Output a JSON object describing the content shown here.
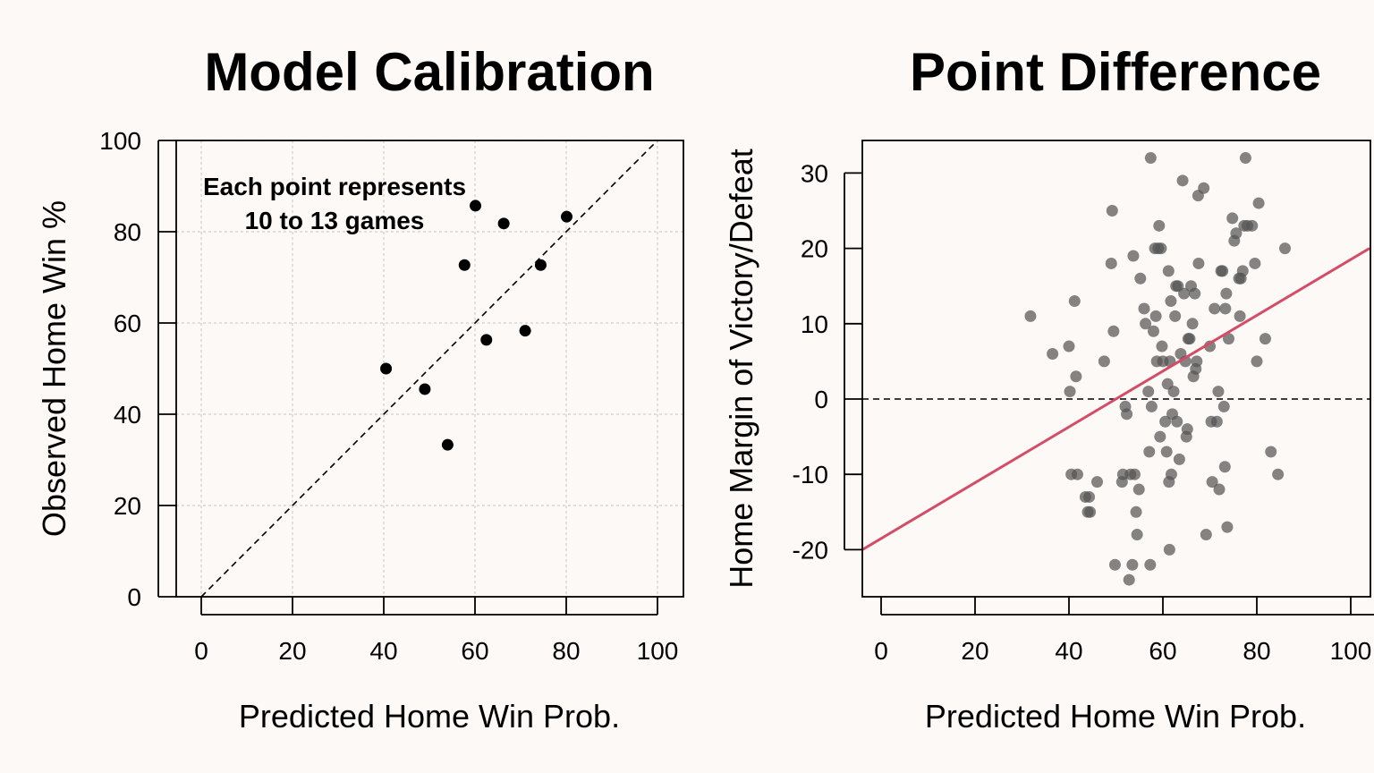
{
  "chart_data": [
    {
      "type": "scatter",
      "title": "Model Calibration",
      "xlabel": "Predicted Home Win Prob.",
      "ylabel": "Observed Home Win %",
      "xlim": [
        0,
        100
      ],
      "ylim": [
        0,
        100
      ],
      "xticks": [
        "0",
        "20",
        "40",
        "60",
        "80",
        "100"
      ],
      "yticks": [
        "0",
        "20",
        "40",
        "60",
        "80",
        "100"
      ],
      "grid": true,
      "reference_line": {
        "style": "dashed",
        "from": [
          0,
          0
        ],
        "to": [
          100,
          100
        ]
      },
      "annotation": [
        "Each point represents",
        "10 to 13 games"
      ],
      "point_color": "#000000",
      "points": [
        {
          "x": 40.5,
          "y": 50.0
        },
        {
          "x": 49.0,
          "y": 45.5
        },
        {
          "x": 54.0,
          "y": 33.3
        },
        {
          "x": 57.7,
          "y": 72.7
        },
        {
          "x": 60.1,
          "y": 85.7
        },
        {
          "x": 62.5,
          "y": 56.3
        },
        {
          "x": 66.3,
          "y": 81.8
        },
        {
          "x": 71.0,
          "y": 58.3
        },
        {
          "x": 74.4,
          "y": 72.7
        },
        {
          "x": 80.1,
          "y": 83.3
        }
      ]
    },
    {
      "type": "scatter",
      "title": "Point Difference",
      "xlabel": "Predicted Home Win Prob.",
      "ylabel": "Home Margin of Victory/Defeat",
      "xlim": [
        0,
        100
      ],
      "ylim": [
        -26,
        34
      ],
      "xticks": [
        "0",
        "20",
        "40",
        "60",
        "80",
        "100"
      ],
      "yticks": [
        "-20",
        "-10",
        "0",
        "10",
        "20",
        "30"
      ],
      "grid": false,
      "zero_line": {
        "style": "dashed",
        "y": 0
      },
      "fit_line": {
        "color": "#d44d68",
        "from": [
          -4,
          -20
        ],
        "to": [
          104,
          20
        ]
      },
      "point_color": "#555555",
      "points": [
        {
          "x": 31.8,
          "y": 11
        },
        {
          "x": 36.5,
          "y": 6
        },
        {
          "x": 40.0,
          "y": 7
        },
        {
          "x": 40.2,
          "y": 1
        },
        {
          "x": 40.5,
          "y": -10
        },
        {
          "x": 41.2,
          "y": 13
        },
        {
          "x": 41.5,
          "y": 3
        },
        {
          "x": 41.8,
          "y": -10
        },
        {
          "x": 43.5,
          "y": -13
        },
        {
          "x": 44.0,
          "y": -15
        },
        {
          "x": 44.3,
          "y": -13
        },
        {
          "x": 44.5,
          "y": -15
        },
        {
          "x": 46.0,
          "y": -11
        },
        {
          "x": 47.5,
          "y": 5
        },
        {
          "x": 49.0,
          "y": 18
        },
        {
          "x": 49.2,
          "y": 25
        },
        {
          "x": 49.5,
          "y": 9
        },
        {
          "x": 49.8,
          "y": -22
        },
        {
          "x": 51.3,
          "y": -11
        },
        {
          "x": 51.5,
          "y": -10
        },
        {
          "x": 52.0,
          "y": -1
        },
        {
          "x": 52.3,
          "y": -2
        },
        {
          "x": 52.8,
          "y": -24
        },
        {
          "x": 53.1,
          "y": -10
        },
        {
          "x": 53.5,
          "y": -22
        },
        {
          "x": 53.7,
          "y": 19
        },
        {
          "x": 54.0,
          "y": -10
        },
        {
          "x": 54.3,
          "y": -15
        },
        {
          "x": 54.5,
          "y": -18
        },
        {
          "x": 54.9,
          "y": -12
        },
        {
          "x": 55.2,
          "y": 16
        },
        {
          "x": 56.0,
          "y": 12
        },
        {
          "x": 56.3,
          "y": 10
        },
        {
          "x": 56.9,
          "y": 1
        },
        {
          "x": 57.1,
          "y": -7
        },
        {
          "x": 57.3,
          "y": -22
        },
        {
          "x": 57.4,
          "y": 32
        },
        {
          "x": 57.6,
          "y": -1
        },
        {
          "x": 58.0,
          "y": 9
        },
        {
          "x": 58.3,
          "y": 20
        },
        {
          "x": 58.5,
          "y": 11
        },
        {
          "x": 58.7,
          "y": 5
        },
        {
          "x": 59.0,
          "y": 20
        },
        {
          "x": 59.2,
          "y": 23
        },
        {
          "x": 59.4,
          "y": -5
        },
        {
          "x": 59.6,
          "y": 20
        },
        {
          "x": 59.8,
          "y": 7
        },
        {
          "x": 60.0,
          "y": 5
        },
        {
          "x": 60.5,
          "y": -3
        },
        {
          "x": 60.8,
          "y": -7
        },
        {
          "x": 61.0,
          "y": 2
        },
        {
          "x": 61.2,
          "y": 17
        },
        {
          "x": 61.3,
          "y": -11
        },
        {
          "x": 61.4,
          "y": -20
        },
        {
          "x": 61.5,
          "y": 5
        },
        {
          "x": 61.7,
          "y": 13
        },
        {
          "x": 61.8,
          "y": -10
        },
        {
          "x": 62.0,
          "y": -2
        },
        {
          "x": 62.3,
          "y": 1
        },
        {
          "x": 62.6,
          "y": 11
        },
        {
          "x": 62.8,
          "y": 15
        },
        {
          "x": 63.0,
          "y": -3
        },
        {
          "x": 63.2,
          "y": 15
        },
        {
          "x": 63.5,
          "y": -8
        },
        {
          "x": 63.8,
          "y": 6
        },
        {
          "x": 64.2,
          "y": 29
        },
        {
          "x": 64.5,
          "y": 14
        },
        {
          "x": 64.8,
          "y": 5
        },
        {
          "x": 65.0,
          "y": -5
        },
        {
          "x": 65.2,
          "y": -4
        },
        {
          "x": 65.4,
          "y": 8
        },
        {
          "x": 65.7,
          "y": 8
        },
        {
          "x": 66.0,
          "y": 15
        },
        {
          "x": 66.3,
          "y": 10
        },
        {
          "x": 66.5,
          "y": 3
        },
        {
          "x": 66.8,
          "y": 14
        },
        {
          "x": 67.0,
          "y": 4
        },
        {
          "x": 67.2,
          "y": 5
        },
        {
          "x": 67.5,
          "y": 27
        },
        {
          "x": 67.6,
          "y": 18
        },
        {
          "x": 68.7,
          "y": 28
        },
        {
          "x": 69.2,
          "y": -18
        },
        {
          "x": 70.0,
          "y": 7
        },
        {
          "x": 70.3,
          "y": -3
        },
        {
          "x": 70.5,
          "y": -11
        },
        {
          "x": 71.0,
          "y": 12
        },
        {
          "x": 71.5,
          "y": -3
        },
        {
          "x": 71.8,
          "y": 1
        },
        {
          "x": 72.0,
          "y": -12
        },
        {
          "x": 72.4,
          "y": 17
        },
        {
          "x": 72.7,
          "y": 17
        },
        {
          "x": 73.0,
          "y": -1
        },
        {
          "x": 73.2,
          "y": -9
        },
        {
          "x": 73.3,
          "y": 12
        },
        {
          "x": 73.5,
          "y": 14
        },
        {
          "x": 73.7,
          "y": -17
        },
        {
          "x": 74.0,
          "y": 8
        },
        {
          "x": 74.8,
          "y": 24
        },
        {
          "x": 75.2,
          "y": 21
        },
        {
          "x": 75.6,
          "y": 22
        },
        {
          "x": 76.2,
          "y": 16
        },
        {
          "x": 76.4,
          "y": 11
        },
        {
          "x": 76.6,
          "y": 16
        },
        {
          "x": 77.0,
          "y": 17
        },
        {
          "x": 77.3,
          "y": 23
        },
        {
          "x": 77.6,
          "y": 32
        },
        {
          "x": 78.0,
          "y": 23
        },
        {
          "x": 79.0,
          "y": 23
        },
        {
          "x": 79.6,
          "y": 18
        },
        {
          "x": 80.0,
          "y": 5
        },
        {
          "x": 80.4,
          "y": 26
        },
        {
          "x": 81.8,
          "y": 8
        },
        {
          "x": 83.0,
          "y": -7
        },
        {
          "x": 84.5,
          "y": -10
        },
        {
          "x": 86.0,
          "y": 20
        }
      ]
    }
  ]
}
